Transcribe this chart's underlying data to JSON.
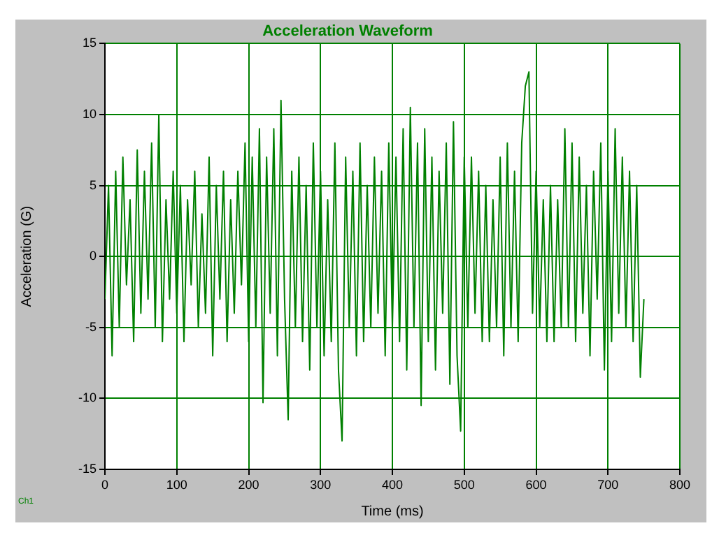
{
  "chart_data": {
    "type": "line",
    "title": "Acceleration Waveform",
    "xlabel": "Time (ms)",
    "ylabel": "Acceleration (G)",
    "annotations": [
      "Ch1"
    ],
    "x": [
      0,
      5,
      10,
      15,
      20,
      25,
      30,
      35,
      40,
      45,
      50,
      55,
      60,
      65,
      70,
      75,
      80,
      85,
      90,
      95,
      100,
      105,
      110,
      115,
      120,
      125,
      130,
      135,
      140,
      145,
      150,
      155,
      160,
      165,
      170,
      175,
      180,
      185,
      190,
      195,
      200,
      205,
      210,
      215,
      220,
      225,
      230,
      235,
      240,
      245,
      250,
      255,
      260,
      265,
      270,
      275,
      280,
      285,
      290,
      295,
      300,
      305,
      310,
      315,
      320,
      325,
      330,
      335,
      340,
      345,
      350,
      355,
      360,
      365,
      370,
      375,
      380,
      385,
      390,
      395,
      400,
      405,
      410,
      415,
      420,
      425,
      430,
      435,
      440,
      445,
      450,
      455,
      460,
      465,
      470,
      475,
      480,
      485,
      490,
      495,
      500,
      505,
      510,
      515,
      520,
      525,
      530,
      535,
      540,
      545,
      550,
      555,
      560,
      565,
      570,
      575,
      580,
      585,
      590,
      595,
      600,
      605,
      610,
      615,
      620,
      625,
      630,
      635,
      640,
      645,
      650,
      655,
      660,
      665,
      670,
      675,
      680,
      685,
      690,
      695,
      700,
      705,
      710,
      715,
      720,
      725,
      730,
      735,
      740,
      745,
      750
    ],
    "series": [
      {
        "color": "#008000",
        "values": [
          -3,
          5,
          -7,
          6,
          -5,
          7,
          -2,
          4,
          -6,
          7.5,
          -4,
          6,
          -3,
          8,
          -5,
          10,
          -6,
          4,
          -3,
          6,
          -4,
          5,
          -6,
          4,
          -2,
          6,
          -5,
          3,
          -4,
          7,
          -7,
          5,
          -3,
          6,
          -6,
          4,
          -4,
          6,
          -2,
          8,
          -6,
          7,
          -5,
          9,
          -10.3,
          7,
          -4,
          9,
          -7,
          11,
          -3,
          -11.5,
          6,
          -5,
          7,
          -6,
          5,
          -8,
          8,
          -5,
          6,
          -7,
          4,
          -6,
          8,
          -8,
          -13,
          7,
          -5,
          6,
          -7,
          8,
          -6,
          5,
          -5,
          7,
          -4,
          6,
          -7,
          8,
          -5,
          7,
          -6,
          9,
          -8,
          10.5,
          -5,
          8,
          -10.5,
          9,
          -6,
          7,
          -8,
          6,
          -4,
          8,
          -9,
          9.5,
          -7,
          -12.3,
          7,
          -5,
          7,
          -4,
          6,
          -6,
          5,
          -6,
          4,
          -5,
          7,
          -7,
          8,
          -5,
          6,
          -6,
          8,
          12,
          13,
          -4,
          6,
          -5,
          4,
          -6,
          5,
          -6,
          4,
          -5,
          9,
          -5,
          8,
          -6,
          7,
          -4,
          5,
          -7,
          6,
          -3,
          8,
          -8,
          6,
          -6,
          9,
          -4,
          7,
          -5,
          6,
          -6,
          5,
          -8.5,
          -3
        ]
      }
    ],
    "xlim": [
      0,
      800
    ],
    "xticks": [
      0,
      100,
      200,
      300,
      400,
      500,
      600,
      700,
      800
    ],
    "ylim": [
      -15,
      15
    ],
    "yticks": [
      -15,
      -10,
      -5,
      0,
      5,
      10,
      15
    ],
    "grid": true,
    "line_style": "solid",
    "marker": "none"
  }
}
